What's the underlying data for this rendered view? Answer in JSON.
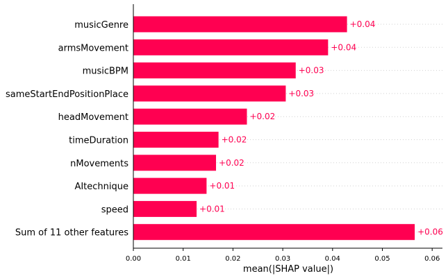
{
  "chart_data": {
    "type": "bar",
    "orientation": "horizontal",
    "categories": [
      "musicGenre",
      "armsMovement",
      "musicBPM",
      "sameStartEndPositionPlace",
      "headMovement",
      "timeDuration",
      "nMovements",
      "AItechnique",
      "speed",
      "Sum of 11 other features"
    ],
    "values": [
      0.0429,
      0.0391,
      0.0326,
      0.0306,
      0.0228,
      0.0171,
      0.0166,
      0.0147,
      0.0127,
      0.0565
    ],
    "value_labels": [
      "+0.04",
      "+0.04",
      "+0.03",
      "+0.03",
      "+0.02",
      "+0.02",
      "+0.02",
      "+0.01",
      "+0.01",
      "+0.06"
    ],
    "xlabel": "mean(|SHAP value|)",
    "xlim": [
      0,
      0.0625
    ],
    "xticks": [
      "0.00",
      "0.01",
      "0.02",
      "0.03",
      "0.04",
      "0.05",
      "0.06"
    ],
    "bar_color": "#ff0051",
    "grid": "dotted horizontal lines per row"
  }
}
